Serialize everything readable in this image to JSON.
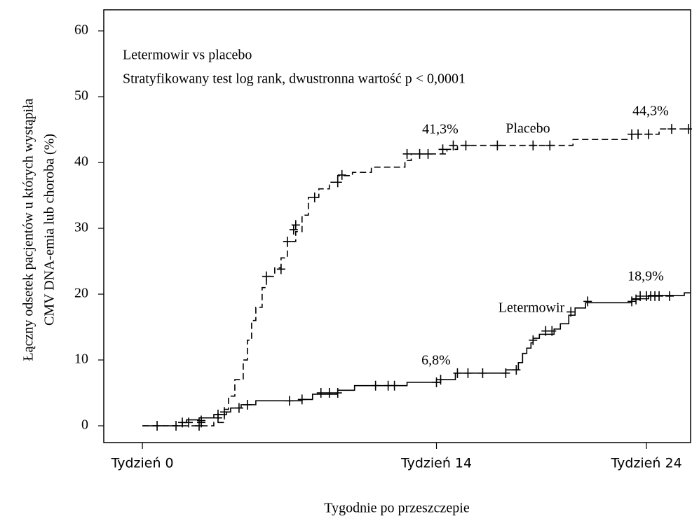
{
  "chart_data": {
    "type": "step",
    "annotations": [
      "Letermowir vs placebo",
      "Stratyfikowany test log rank, dwustronna wartość p < 0,0001"
    ],
    "xlabel": "Tygodnie po przeszczepie",
    "ylabel": [
      "Łączny odsetek pacjentów u których wystąpiła",
      "CMV DNA-emia lub choroba (%)"
    ],
    "xlim": [
      -1.84,
      26.1
    ],
    "ylim": [
      -2.55,
      63.2
    ],
    "xticks": [
      {
        "value": 0,
        "label": "Tydzień 0"
      },
      {
        "value": 14,
        "label": "Tydzień 14"
      },
      {
        "value": 24,
        "label": "Tydzień 24"
      }
    ],
    "yticks": [
      0,
      10,
      20,
      30,
      40,
      50,
      60
    ],
    "series": [
      {
        "name": "Placebo",
        "color": "#000000",
        "dash": true,
        "x": [
          0,
          3.4,
          3.9,
          4.1,
          4.4,
          4.8,
          5.0,
          5.2,
          5.4,
          5.7,
          5.9,
          6.3,
          6.6,
          6.9,
          7.3,
          7.6,
          7.9,
          8.4,
          8.9,
          9.3,
          10.0,
          10.9,
          12.5,
          12.8,
          14.5,
          15.0,
          20.5,
          23.3,
          24.6
        ],
        "values": [
          0,
          0.5,
          2.5,
          4.5,
          7,
          10,
          13,
          16,
          18,
          21,
          22.7,
          24,
          25.5,
          28,
          29.5,
          32,
          34.7,
          36,
          37,
          38,
          38.5,
          39.3,
          40.3,
          41.3,
          42,
          42.6,
          43.5,
          44.3,
          45.1
        ],
        "censor_x": [
          2.8,
          3.6,
          5.9,
          6.6,
          6.9,
          7.2,
          7.3,
          8.2,
          9.3,
          9.5,
          12.6,
          13.2,
          13.6,
          14.3,
          14.8,
          15.4,
          16.9,
          18.6,
          19.4,
          23.3,
          23.6,
          24.1,
          25.2,
          26.0
        ],
        "censor_values": [
          0.5,
          1.2,
          22.7,
          23.8,
          28,
          29.8,
          30.5,
          34.7,
          37,
          38.1,
          41.3,
          41.3,
          41.3,
          42,
          42.6,
          42.6,
          42.6,
          42.6,
          42.6,
          44.3,
          44.3,
          44.3,
          45.1,
          45.1
        ],
        "value_labels": [
          {
            "value": 41.3,
            "label": "41,3%"
          },
          {
            "value": 44.3,
            "label": "44,3%"
          }
        ]
      },
      {
        "name": "Letermowir",
        "color": "#000000",
        "dash": false,
        "x": [
          0,
          1.9,
          2.1,
          2.7,
          3.4,
          4.0,
          4.2,
          4.7,
          5.4,
          7.6,
          8.1,
          9.3,
          10.1,
          12.6,
          14.2,
          14.9,
          17.3,
          17.9,
          18.1,
          18.3,
          18.5,
          18.6,
          18.9,
          19.6,
          19.9,
          20.3,
          20.6,
          21.1,
          23.3,
          24.1,
          25.8
        ],
        "values": [
          0,
          0.5,
          0.9,
          1.2,
          1.7,
          2.1,
          2.7,
          3.2,
          3.8,
          4.0,
          4.8,
          5.4,
          6.1,
          6.6,
          7.0,
          8.0,
          8.5,
          9.6,
          11.0,
          11.8,
          12.6,
          13.3,
          13.9,
          14.7,
          15.5,
          16.8,
          17.9,
          18.7,
          19.3,
          19.8,
          20.2
        ],
        "censor_x": [
          0.7,
          1.6,
          1.9,
          2.2,
          2.7,
          2.8,
          3.6,
          3.9,
          4.6,
          5.0,
          7.0,
          7.6,
          8.5,
          8.9,
          9.3,
          11.1,
          11.7,
          12.0,
          14.0,
          14.2,
          15.0,
          15.5,
          16.2,
          17.3,
          17.8,
          18.6,
          19.2,
          19.5,
          20.4,
          21.2,
          23.3,
          23.5,
          23.7,
          24.0,
          24.2,
          24.4,
          24.6,
          25.1
        ],
        "censor_values": [
          0,
          0,
          0.5,
          0.5,
          0,
          0.8,
          1.7,
          2.1,
          2.7,
          3.2,
          3.8,
          4.0,
          5.0,
          5.0,
          5.0,
          6.1,
          6.1,
          6.1,
          6.6,
          7.0,
          8.0,
          8.0,
          8.0,
          8.0,
          8.5,
          13.0,
          14.4,
          14.4,
          17.3,
          18.9,
          18.9,
          19.2,
          19.7,
          19.7,
          19.7,
          19.7,
          19.7,
          19.7
        ],
        "value_labels": [
          {
            "value": 6.8,
            "label": "6,8%"
          },
          {
            "value": 18.9,
            "label": "18,9%"
          }
        ]
      }
    ]
  }
}
